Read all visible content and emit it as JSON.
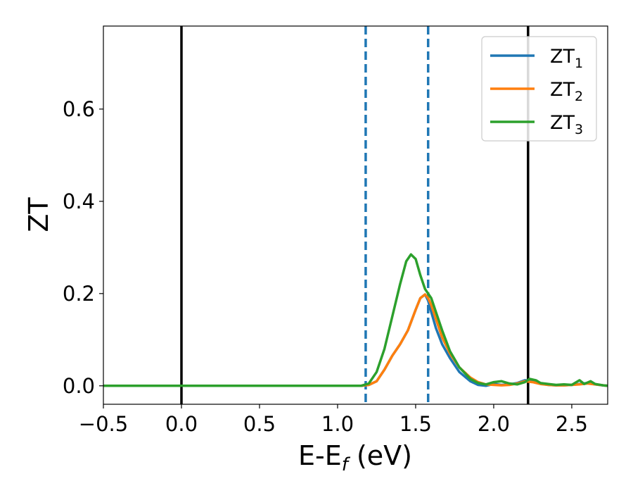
{
  "chart_data": {
    "type": "line",
    "title": "",
    "xlabel": {
      "main": "E-E",
      "sub": "f",
      "tail": " (eV)"
    },
    "ylabel": "ZT",
    "xlim": [
      -0.5,
      2.73
    ],
    "ylim": [
      -0.04,
      0.78
    ],
    "grid": false,
    "legend_position": "top-right",
    "xticks": [
      -0.5,
      0.0,
      0.5,
      1.0,
      1.5,
      2.0,
      2.5
    ],
    "xtick_labels": [
      "−0.5",
      "0.0",
      "0.5",
      "1.0",
      "1.5",
      "2.0",
      "2.5"
    ],
    "yticks": [
      0.0,
      0.2,
      0.4,
      0.6
    ],
    "ytick_labels": [
      "0.0",
      "0.2",
      "0.4",
      "0.6"
    ],
    "vlines": [
      {
        "x": 0.0,
        "style": "solid",
        "color": "#000000"
      },
      {
        "x": 2.22,
        "style": "solid",
        "color": "#000000"
      },
      {
        "x": 1.18,
        "style": "dashed",
        "color": "#1f77b4"
      },
      {
        "x": 1.58,
        "style": "dashed",
        "color": "#1f77b4"
      }
    ],
    "series": [
      {
        "name": "ZT",
        "name_sub": "1",
        "color": "#1f77b4",
        "x": [
          -0.5,
          1.15,
          1.2,
          1.25,
          1.3,
          1.35,
          1.4,
          1.45,
          1.5,
          1.53,
          1.56,
          1.58,
          1.6,
          1.63,
          1.67,
          1.72,
          1.78,
          1.85,
          1.9,
          1.95,
          2.0,
          2.05,
          2.1,
          2.15,
          2.2,
          2.25,
          2.3,
          2.35,
          2.4,
          2.45,
          2.5,
          2.55,
          2.6,
          2.65,
          2.7,
          2.73
        ],
        "y": [
          0.0,
          0.0,
          0.002,
          0.01,
          0.035,
          0.065,
          0.09,
          0.12,
          0.165,
          0.19,
          0.198,
          0.185,
          0.16,
          0.125,
          0.09,
          0.06,
          0.03,
          0.01,
          0.002,
          0.0,
          0.004,
          0.002,
          0.003,
          0.006,
          0.012,
          0.01,
          0.005,
          0.002,
          0.001,
          0.001,
          0.002,
          0.004,
          0.006,
          0.003,
          0.001,
          0.0
        ]
      },
      {
        "name": "ZT",
        "name_sub": "2",
        "color": "#ff7f0e",
        "x": [
          -0.5,
          1.15,
          1.2,
          1.25,
          1.3,
          1.35,
          1.4,
          1.45,
          1.5,
          1.53,
          1.56,
          1.58,
          1.6,
          1.63,
          1.67,
          1.72,
          1.78,
          1.85,
          1.9,
          1.95,
          2.0,
          2.05,
          2.1,
          2.15,
          2.2,
          2.25,
          2.3,
          2.35,
          2.4,
          2.45,
          2.5,
          2.55,
          2.6,
          2.65,
          2.7,
          2.73
        ],
        "y": [
          0.0,
          0.0,
          0.002,
          0.01,
          0.035,
          0.065,
          0.09,
          0.12,
          0.165,
          0.19,
          0.198,
          0.19,
          0.175,
          0.145,
          0.105,
          0.07,
          0.04,
          0.018,
          0.008,
          0.003,
          0.002,
          0.001,
          0.002,
          0.005,
          0.01,
          0.008,
          0.004,
          0.002,
          0.001,
          0.001,
          0.002,
          0.003,
          0.005,
          0.003,
          0.001,
          0.0
        ]
      },
      {
        "name": "ZT",
        "name_sub": "3",
        "color": "#2ca02c",
        "x": [
          -0.5,
          1.15,
          1.2,
          1.25,
          1.3,
          1.35,
          1.4,
          1.44,
          1.47,
          1.5,
          1.53,
          1.56,
          1.58,
          1.6,
          1.63,
          1.67,
          1.72,
          1.78,
          1.85,
          1.9,
          1.95,
          2.0,
          2.05,
          2.1,
          2.15,
          2.2,
          2.23,
          2.27,
          2.3,
          2.35,
          2.4,
          2.45,
          2.5,
          2.55,
          2.58,
          2.62,
          2.65,
          2.7,
          2.73
        ],
        "y": [
          0.0,
          0.0,
          0.005,
          0.03,
          0.08,
          0.15,
          0.22,
          0.27,
          0.285,
          0.275,
          0.24,
          0.21,
          0.2,
          0.19,
          0.16,
          0.12,
          0.075,
          0.04,
          0.015,
          0.006,
          0.003,
          0.008,
          0.01,
          0.005,
          0.003,
          0.008,
          0.015,
          0.012,
          0.006,
          0.004,
          0.002,
          0.003,
          0.002,
          0.012,
          0.004,
          0.01,
          0.004,
          0.001,
          0.0
        ]
      }
    ]
  }
}
